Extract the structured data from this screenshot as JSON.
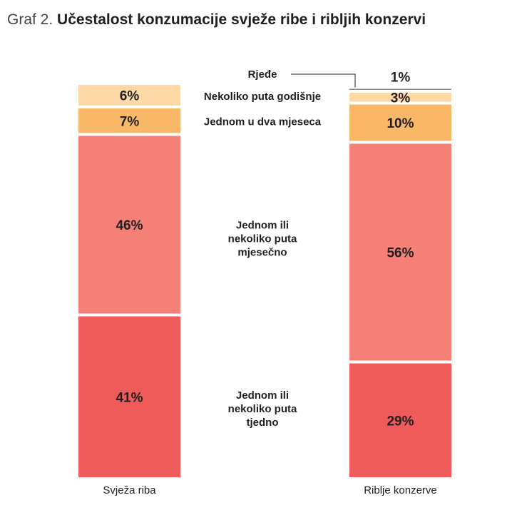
{
  "chart_data": {
    "type": "bar",
    "stacked": true,
    "percent": true,
    "title_prefix": "Graf 2.",
    "title": "Učestalost konzumacije svježe ribe i ribljih konzervi",
    "categories": [
      "Svježa riba",
      "Riblje konzerve"
    ],
    "series": [
      {
        "name": "Jednom ili nekoliko puta tjedno",
        "label_lines": [
          "Jednom ili",
          "nekoliko puta",
          "tjedno"
        ],
        "color": "#ef5a5a",
        "values": [
          41,
          29
        ]
      },
      {
        "name": "Jednom ili nekoliko puta mjesečno",
        "label_lines": [
          "Jednom ili",
          "nekoliko puta",
          "mjesečno"
        ],
        "color": "#f48078",
        "values": [
          46,
          56
        ]
      },
      {
        "name": "Jednom u dva mjeseca",
        "label_lines": [
          "Jednom u dva mjeseca"
        ],
        "color": "#f9b868",
        "values": [
          7,
          10
        ]
      },
      {
        "name": "Nekoliko puta godišnje",
        "label_lines": [
          "Nekoliko puta godišnje"
        ],
        "color": "#fdd9a8",
        "values": [
          6,
          3
        ]
      },
      {
        "name": "Rjeđe",
        "label_lines": [
          "Rjeđe"
        ],
        "color": "#8c8c8c",
        "values": [
          0,
          1
        ]
      }
    ],
    "value_suffix": "%",
    "legend": "center-between-bars",
    "grid": false,
    "ylim": [
      0,
      100
    ]
  }
}
